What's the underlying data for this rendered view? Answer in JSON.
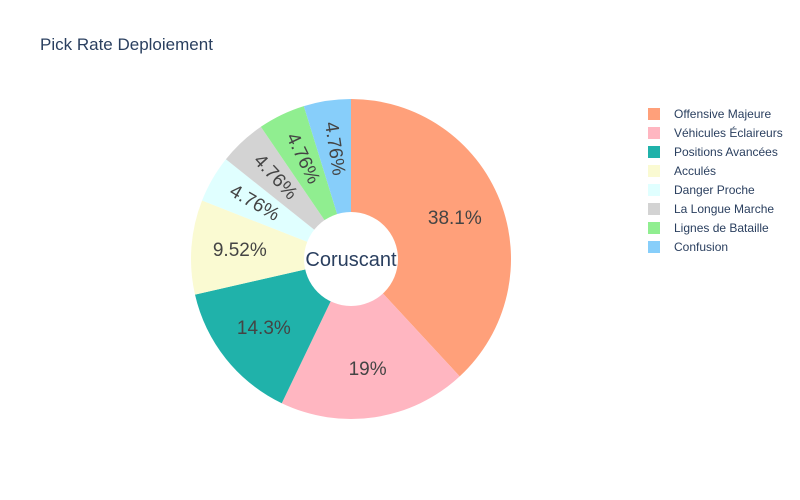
{
  "chart_data": {
    "type": "pie",
    "title": "Pick Rate Deploiement",
    "center_label": "Coruscant",
    "categories": [
      "Offensive Majeure",
      "Véhicules Éclaireurs",
      "Positions Avancées",
      "Acculés",
      "Danger Proche",
      "La Longue Marche",
      "Lignes de Bataille",
      "Confusion"
    ],
    "values": [
      38.1,
      19.0,
      14.3,
      9.52,
      4.76,
      4.76,
      4.76,
      4.76
    ],
    "labels": [
      "38.1%",
      "19%",
      "14.3%",
      "9.52%",
      "4.76%",
      "4.76%",
      "4.76%",
      "4.76%"
    ],
    "colors": [
      "#FFA07A",
      "#FFB6C1",
      "#20B2AA",
      "#FAFAD2",
      "#E0FFFF",
      "#D3D3D3",
      "#90EE90",
      "#87CEFA"
    ],
    "legend_position": "right",
    "hole": true
  }
}
